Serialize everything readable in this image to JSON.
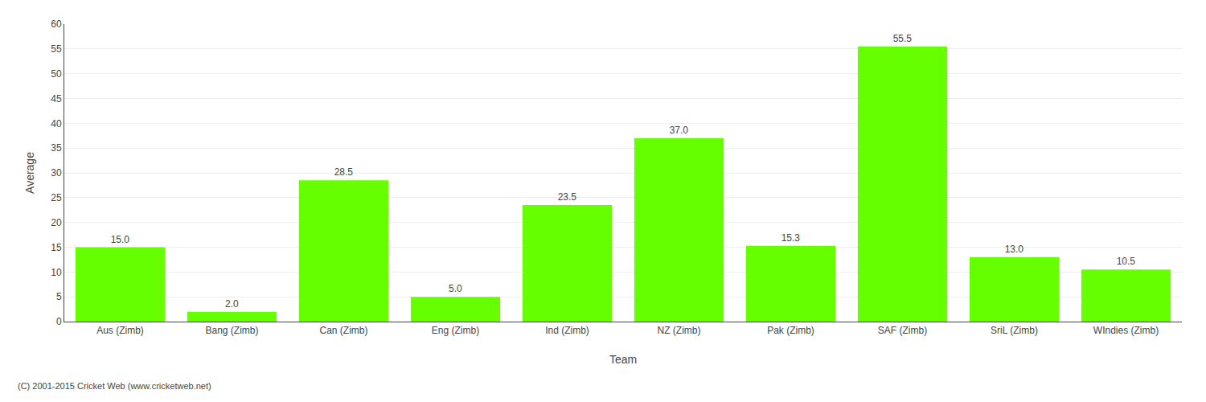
{
  "chart_data": {
    "type": "bar",
    "xlabel": "Team",
    "ylabel": "Average",
    "categories": [
      "Aus (Zimb)",
      "Bang (Zimb)",
      "Can (Zimb)",
      "Eng (Zimb)",
      "Ind (Zimb)",
      "NZ (Zimb)",
      "Pak (Zimb)",
      "SAF (Zimb)",
      "SriL (Zimb)",
      "WIndies (Zimb)"
    ],
    "values": [
      15.0,
      2.0,
      28.5,
      5.0,
      23.5,
      37.0,
      15.3,
      55.5,
      13.0,
      10.5
    ],
    "value_labels": [
      "15.0",
      "2.0",
      "28.5",
      "5.0",
      "23.5",
      "37.0",
      "15.3",
      "55.5",
      "13.0",
      "10.5"
    ],
    "data_labels": true,
    "color": "#66ff00",
    "ylim": [
      0,
      60
    ],
    "yticks": [
      0,
      5,
      10,
      15,
      20,
      25,
      30,
      35,
      40,
      45,
      50,
      55,
      60
    ],
    "grid": true,
    "annotations": [
      "(C) 2001-2015 Cricket Web (www.cricketweb.net)"
    ]
  }
}
